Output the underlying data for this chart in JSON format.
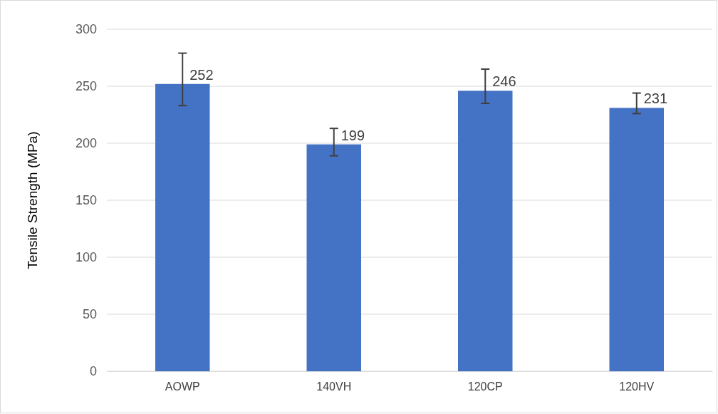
{
  "chart_data": {
    "type": "bar",
    "ylabel": "Tensile Strength (MPa)",
    "categories": [
      "AOWP",
      "140VH",
      "120CP",
      "120HV"
    ],
    "values": [
      252,
      199,
      246,
      231
    ],
    "color": "#4472c4",
    "errors": [
      [
        233,
        279
      ],
      [
        189,
        213
      ],
      [
        235,
        265
      ],
      [
        226,
        244
      ]
    ],
    "data_labels": true,
    "ylim": [
      0,
      300
    ],
    "yticks": [
      0,
      50,
      100,
      150,
      200,
      250,
      300
    ],
    "grid": "y"
  }
}
